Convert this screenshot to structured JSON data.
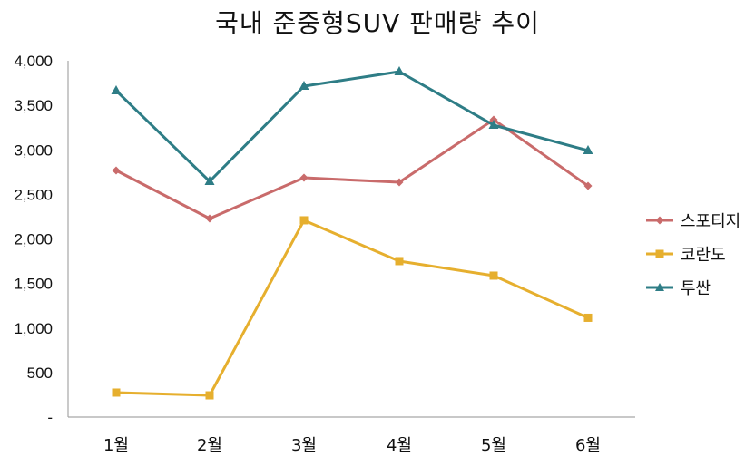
{
  "title": "국내 준중형SUV 판매량 추이",
  "y_axis": {
    "ticks": [
      {
        "value": 4000,
        "label": "4,000"
      },
      {
        "value": 3500,
        "label": "3,500"
      },
      {
        "value": 3000,
        "label": "3,000"
      },
      {
        "value": 2500,
        "label": "2,500"
      },
      {
        "value": 2000,
        "label": "2,000"
      },
      {
        "value": 1500,
        "label": "1,500"
      },
      {
        "value": 1000,
        "label": "1,000"
      },
      {
        "value": 500,
        "label": "500"
      },
      {
        "value": 0,
        "label": "-"
      }
    ]
  },
  "x_axis": {
    "labels": [
      "1월",
      "2월",
      "3월",
      "4월",
      "5월",
      "6월"
    ]
  },
  "legend": {
    "items": [
      {
        "label": "스포티지",
        "color": "#C96B6B",
        "marker": "diamond"
      },
      {
        "label": "코란도",
        "color": "#E6AF2E",
        "marker": "square"
      },
      {
        "label": "투싼",
        "color": "#2E7D86",
        "marker": "triangle"
      }
    ]
  },
  "chart_data": {
    "type": "line",
    "title": "국내 준중형SUV 판매량 추이",
    "xlabel": "",
    "ylabel": "",
    "categories": [
      "1월",
      "2월",
      "3월",
      "4월",
      "5월",
      "6월"
    ],
    "ylim": [
      0,
      4000
    ],
    "yticks": [
      0,
      500,
      1000,
      1500,
      2000,
      2500,
      3000,
      3500,
      4000
    ],
    "grid": false,
    "legend_position": "right",
    "series": [
      {
        "name": "스포티지",
        "color": "#C96B6B",
        "marker": "diamond",
        "values": [
          2768,
          2229,
          2687,
          2636,
          3338,
          2595
        ]
      },
      {
        "name": "코란도",
        "color": "#E6AF2E",
        "marker": "square",
        "values": [
          275,
          244,
          2209,
          1751,
          1588,
          1115
        ]
      },
      {
        "name": "투싼",
        "color": "#2E7D86",
        "marker": "triangle",
        "values": [
          3664,
          2646,
          3715,
          3878,
          3277,
          2992
        ]
      }
    ]
  }
}
